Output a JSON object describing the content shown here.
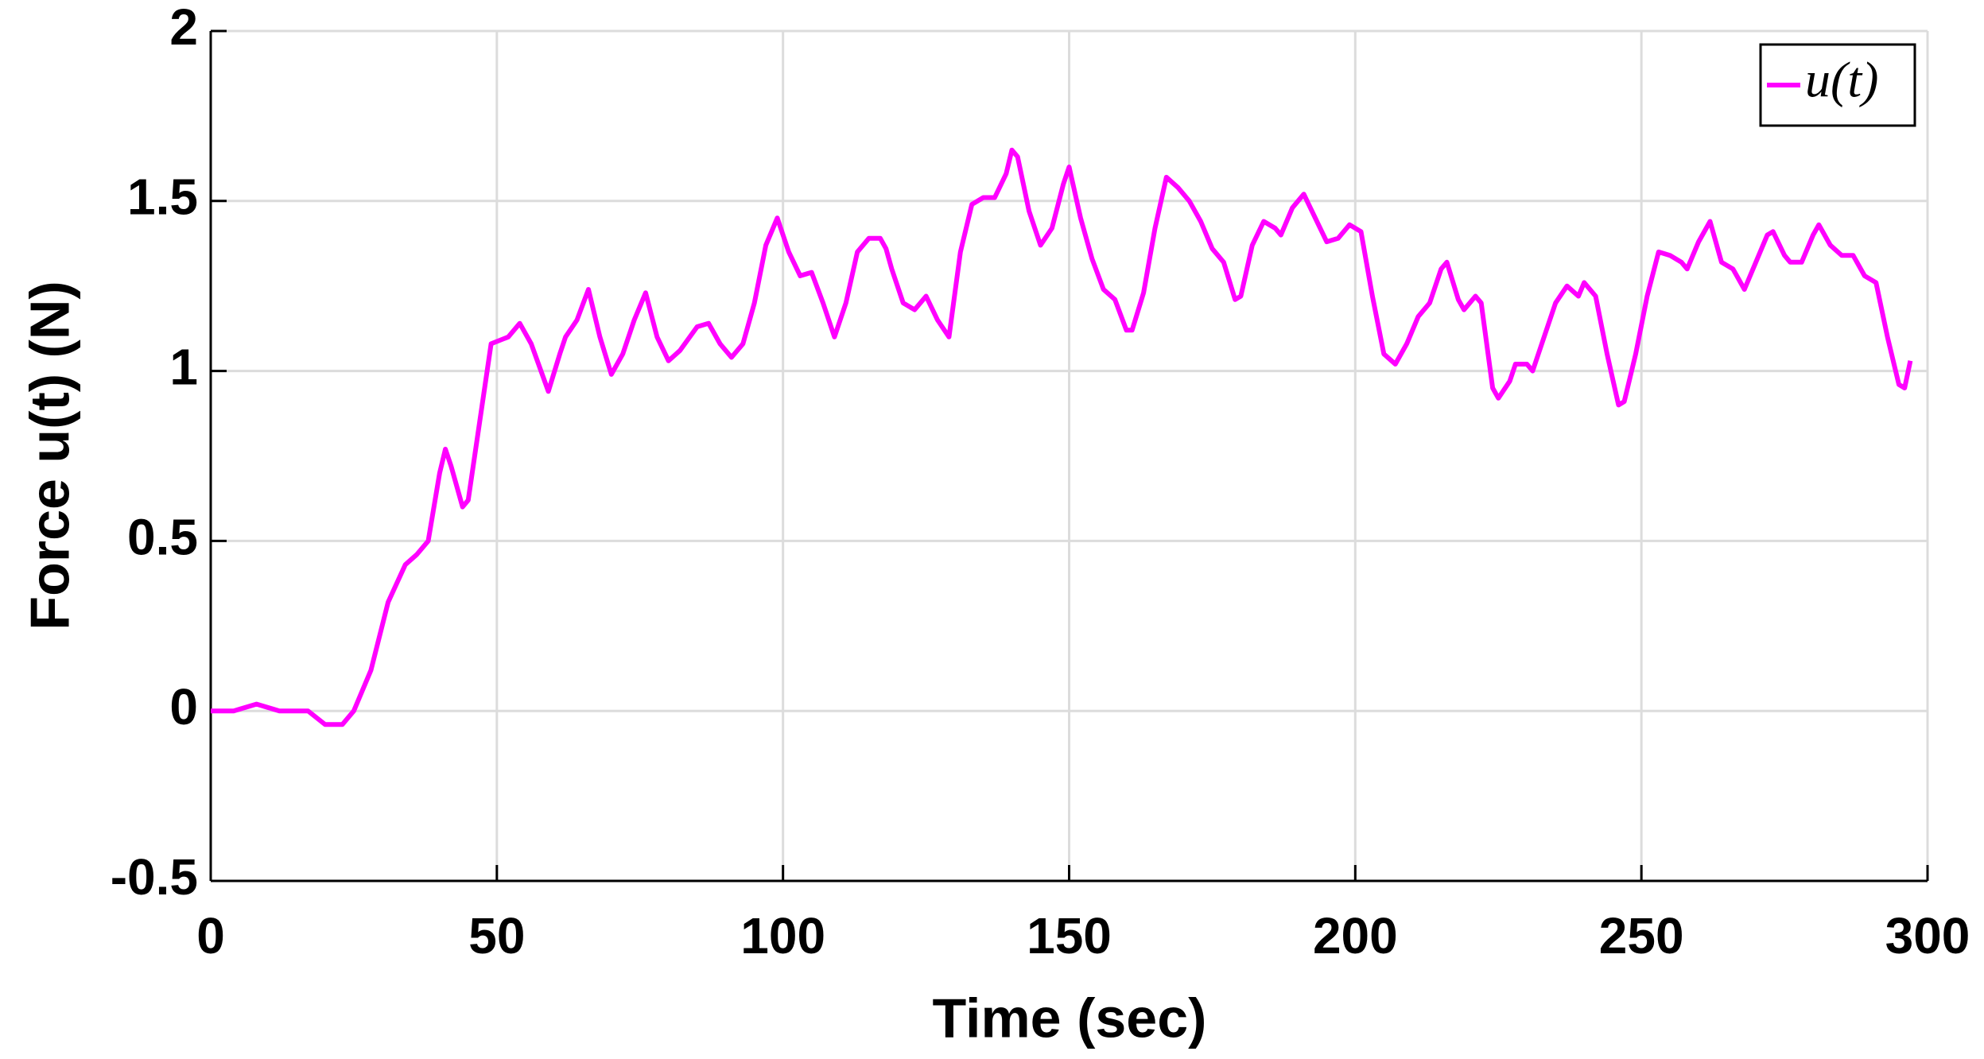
{
  "chart_data": {
    "type": "line",
    "xlabel": "Time (sec)",
    "ylabel": "Force u(t) (N)",
    "xlim": [
      0,
      300
    ],
    "xticks": [
      0,
      50,
      100,
      150,
      200,
      250,
      300
    ],
    "ylim": [
      -0.5,
      2
    ],
    "yticks": [
      -0.5,
      0,
      0.5,
      1,
      1.5,
      2
    ],
    "grid": true,
    "legend": "upper right",
    "x": [
      0,
      4,
      8,
      12,
      17,
      20,
      23,
      25,
      28,
      31,
      34,
      36,
      38,
      40,
      41,
      42,
      44,
      45,
      47,
      49,
      52,
      54,
      56,
      59,
      61,
      62,
      64,
      66,
      68,
      70,
      72,
      74,
      76,
      78,
      80,
      82,
      85,
      87,
      89,
      91,
      93,
      95,
      97,
      99,
      101,
      103,
      105,
      107,
      109,
      111,
      113,
      115,
      117,
      118,
      119,
      121,
      123,
      125,
      127,
      129,
      131,
      133,
      135,
      137,
      139,
      140,
      141,
      143,
      145,
      147,
      149,
      150,
      152,
      154,
      156,
      158,
      160,
      161,
      163,
      165,
      167,
      169,
      171,
      173,
      175,
      177,
      179,
      180,
      182,
      184,
      186,
      187,
      189,
      191,
      193,
      195,
      197,
      199,
      201,
      203,
      205,
      207,
      209,
      211,
      213,
      215,
      216,
      218,
      219,
      221,
      222,
      224,
      225,
      227,
      228,
      230,
      231,
      233,
      235,
      237,
      239,
      240,
      242,
      244,
      246,
      247,
      249,
      251,
      253,
      255,
      257,
      258,
      260,
      262,
      264,
      266,
      268,
      270,
      272,
      273,
      275,
      276,
      278,
      280,
      281,
      283,
      285,
      287,
      289,
      291,
      293,
      295,
      296,
      297
    ],
    "series": [
      {
        "name": "u(t)",
        "color": "#ff00ff",
        "values": [
          0,
          0,
          0.02,
          0,
          0,
          -0.04,
          -0.04,
          0,
          0.12,
          0.32,
          0.43,
          0.46,
          0.5,
          0.7,
          0.77,
          0.72,
          0.6,
          0.62,
          0.85,
          1.08,
          1.1,
          1.14,
          1.08,
          0.94,
          1.05,
          1.1,
          1.15,
          1.24,
          1.1,
          0.99,
          1.05,
          1.15,
          1.23,
          1.1,
          1.03,
          1.06,
          1.13,
          1.14,
          1.08,
          1.04,
          1.08,
          1.2,
          1.37,
          1.45,
          1.35,
          1.28,
          1.29,
          1.2,
          1.1,
          1.2,
          1.35,
          1.39,
          1.39,
          1.36,
          1.3,
          1.2,
          1.18,
          1.22,
          1.15,
          1.1,
          1.35,
          1.49,
          1.51,
          1.51,
          1.58,
          1.65,
          1.63,
          1.47,
          1.37,
          1.42,
          1.55,
          1.6,
          1.45,
          1.33,
          1.24,
          1.21,
          1.12,
          1.12,
          1.23,
          1.42,
          1.57,
          1.54,
          1.5,
          1.44,
          1.36,
          1.32,
          1.21,
          1.22,
          1.37,
          1.44,
          1.42,
          1.4,
          1.48,
          1.52,
          1.45,
          1.38,
          1.39,
          1.43,
          1.41,
          1.22,
          1.05,
          1.02,
          1.08,
          1.16,
          1.2,
          1.3,
          1.32,
          1.21,
          1.18,
          1.22,
          1.2,
          0.95,
          0.92,
          0.97,
          1.02,
          1.02,
          1.0,
          1.1,
          1.2,
          1.25,
          1.22,
          1.26,
          1.22,
          1.05,
          0.9,
          0.91,
          1.05,
          1.22,
          1.35,
          1.34,
          1.32,
          1.3,
          1.38,
          1.44,
          1.32,
          1.3,
          1.24,
          1.32,
          1.4,
          1.41,
          1.34,
          1.32,
          1.32,
          1.4,
          1.43,
          1.37,
          1.34,
          1.34,
          1.28,
          1.26,
          1.1,
          0.96,
          0.95,
          1.03
        ]
      }
    ]
  }
}
